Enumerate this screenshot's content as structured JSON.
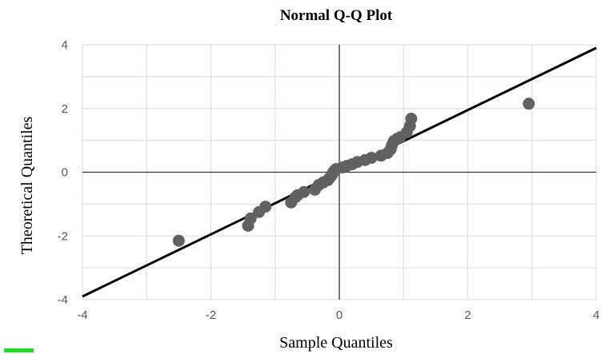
{
  "chart_data": {
    "type": "scatter",
    "title": "Normal Q-Q Plot",
    "xlabel": "Sample Quantiles",
    "ylabel": "Theoretical Quantiles",
    "xlim": [
      -4,
      4
    ],
    "ylim": [
      -4,
      4
    ],
    "xticks": [
      -4,
      -2,
      0,
      2,
      4
    ],
    "yticks": [
      4,
      2,
      0,
      -2,
      -4
    ],
    "grid": true,
    "reference_line": {
      "x": [
        -4,
        4
      ],
      "y": [
        -3.9,
        3.9
      ]
    },
    "points": [
      {
        "x": -2.5,
        "y": -2.15
      },
      {
        "x": -1.42,
        "y": -1.68
      },
      {
        "x": -1.38,
        "y": -1.45
      },
      {
        "x": -1.25,
        "y": -1.25
      },
      {
        "x": -1.15,
        "y": -1.08
      },
      {
        "x": -0.75,
        "y": -0.95
      },
      {
        "x": -0.68,
        "y": -0.78
      },
      {
        "x": -0.65,
        "y": -0.72
      },
      {
        "x": -0.55,
        "y": -0.62
      },
      {
        "x": -0.38,
        "y": -0.55
      },
      {
        "x": -0.32,
        "y": -0.4
      },
      {
        "x": -0.25,
        "y": -0.32
      },
      {
        "x": -0.18,
        "y": -0.25
      },
      {
        "x": -0.15,
        "y": -0.18
      },
      {
        "x": -0.12,
        "y": -0.1
      },
      {
        "x": -0.1,
        "y": -0.02
      },
      {
        "x": -0.08,
        "y": 0.04
      },
      {
        "x": -0.05,
        "y": 0.1
      },
      {
        "x": 0.05,
        "y": 0.15
      },
      {
        "x": 0.12,
        "y": 0.2
      },
      {
        "x": 0.2,
        "y": 0.25
      },
      {
        "x": 0.28,
        "y": 0.32
      },
      {
        "x": 0.4,
        "y": 0.38
      },
      {
        "x": 0.5,
        "y": 0.45
      },
      {
        "x": 0.65,
        "y": 0.52
      },
      {
        "x": 0.75,
        "y": 0.6
      },
      {
        "x": 0.8,
        "y": 0.72
      },
      {
        "x": 0.82,
        "y": 0.85
      },
      {
        "x": 0.85,
        "y": 0.98
      },
      {
        "x": 0.9,
        "y": 1.05
      },
      {
        "x": 0.95,
        "y": 1.1
      },
      {
        "x": 1.05,
        "y": 1.25
      },
      {
        "x": 1.1,
        "y": 1.45
      },
      {
        "x": 1.12,
        "y": 1.68
      },
      {
        "x": 2.95,
        "y": 2.15
      }
    ]
  }
}
